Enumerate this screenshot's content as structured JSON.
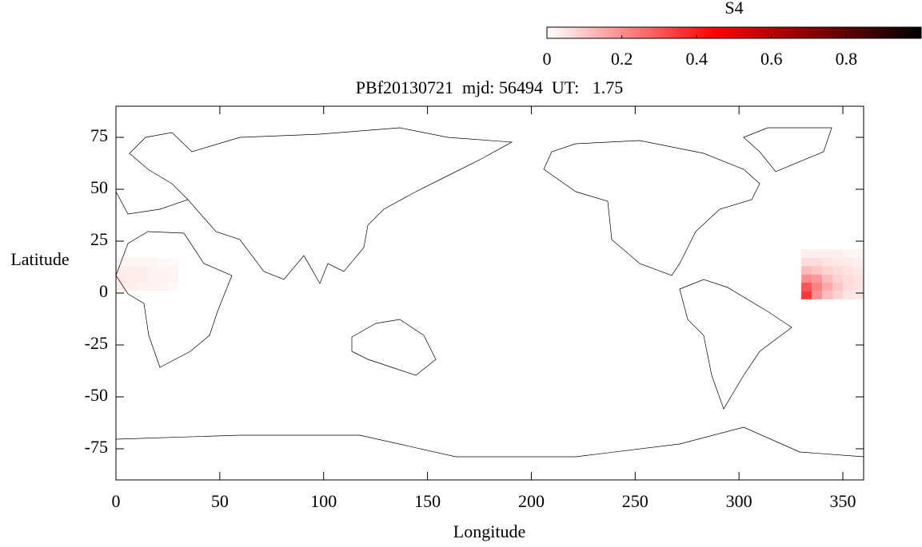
{
  "chart_data": {
    "type": "heatmap",
    "title": "PBf20130721  mjd: 56494  UT:   1.75",
    "x_label": "Longitude",
    "y_label": "Latitude",
    "xlim": [
      0,
      360
    ],
    "ylim": [
      -90,
      90
    ],
    "xticks": [
      0,
      50,
      100,
      150,
      200,
      250,
      300,
      350
    ],
    "yticks": [
      -75,
      -50,
      -25,
      0,
      25,
      50,
      75
    ],
    "colorbar": {
      "label": "S4",
      "clim": [
        0,
        1
      ],
      "ticks": [
        0,
        0.2,
        0.4,
        0.6,
        0.8
      ],
      "colormap": [
        {
          "value": 0,
          "color": "#ffffff"
        },
        {
          "value": 0.45,
          "color": "#ff0000"
        },
        {
          "value": 1,
          "color": "#000000"
        }
      ]
    },
    "heatmaps": [
      {
        "lon_edges": [
          330,
          335,
          340,
          345,
          350,
          355,
          360
        ],
        "lat_edges": [
          -3,
          1,
          5,
          9,
          13,
          17,
          21
        ],
        "values": [
          [
            0.35,
            0.2,
            0.12,
            0.08,
            0.05,
            0.04
          ],
          [
            0.3,
            0.22,
            0.15,
            0.1,
            0.06,
            0.05
          ],
          [
            0.2,
            0.18,
            0.12,
            0.08,
            0.06,
            0.05
          ],
          [
            0.12,
            0.1,
            0.08,
            0.06,
            0.05,
            0.04
          ],
          [
            0.06,
            0.06,
            0.05,
            0.04,
            0.04,
            0.03
          ],
          [
            0.03,
            0.03,
            0.03,
            0.03,
            0.02,
            0.02
          ]
        ]
      },
      {
        "lon_edges": [
          0,
          5,
          10,
          15,
          20,
          25,
          30
        ],
        "lat_edges": [
          1,
          5,
          9,
          13,
          17
        ],
        "values": [
          [
            0.03,
            0.03,
            0.02,
            0.02,
            0.02,
            0.01
          ],
          [
            0.04,
            0.03,
            0.03,
            0.02,
            0.02,
            0.02
          ],
          [
            0.03,
            0.03,
            0.03,
            0.02,
            0.02,
            0.02
          ],
          [
            0.02,
            0.02,
            0.02,
            0.02,
            0.01,
            0.01
          ]
        ]
      }
    ]
  }
}
